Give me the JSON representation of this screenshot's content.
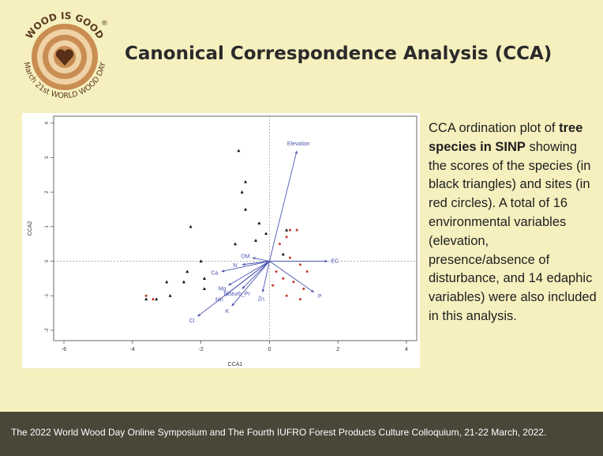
{
  "logo": {
    "arc_top": "WOOD IS GOOD",
    "arc_bottom": "March 21st WORLD WOOD DAY",
    "registered": "®",
    "icon": "heart-icon"
  },
  "slide": {
    "title": "Canonical Correspondence Analysis (CCA)",
    "caption_before": "CCA ordination plot of ",
    "caption_bold": "tree species in SINP",
    "caption_after": " showing the scores of the species (in black triangles) and sites (in red circles). A total of 16 environmental variables (elevation, presence/absence of disturbance, and 14 edaphic variables) were also included in this analysis."
  },
  "footer": {
    "text": "The 2022 World Wood Day Online Symposium and The Fourth IUFRO Forest Products Culture Colloquium, 21-22 March, 2022."
  },
  "colors": {
    "background": "#f6f0bf",
    "footer_bg": "#4a4638",
    "env_arrow": "#4a55b0",
    "species": "#111111",
    "sites": "#c0392b"
  },
  "chart_data": {
    "type": "scatter",
    "xlabel": "CCA1",
    "ylabel": "CCA2",
    "xlim": [
      -6.3,
      4.3
    ],
    "ylim": [
      -2.3,
      4.2
    ],
    "xticks": [
      -6,
      -4,
      -2,
      0,
      2,
      4
    ],
    "yticks": [
      -2,
      -1,
      0,
      1,
      2,
      3,
      4
    ],
    "reference_lines": {
      "x": 0,
      "y": 0
    },
    "grid": false,
    "environmental_vectors": [
      {
        "name": "Elevation",
        "x": 0.8,
        "y": 3.2
      },
      {
        "name": "EC",
        "x": 1.7,
        "y": 0.0
      },
      {
        "name": "P",
        "x": 1.3,
        "y": -0.9
      },
      {
        "name": "OM",
        "x": -0.5,
        "y": 0.1
      },
      {
        "name": "Ca",
        "x": -1.4,
        "y": -0.3
      },
      {
        "name": "Mg",
        "x": -1.2,
        "y": -0.7
      },
      {
        "name": "Disturb_Pr",
        "x": -0.8,
        "y": -0.8
      },
      {
        "name": "Mn",
        "x": -1.3,
        "y": -1.0
      },
      {
        "name": "K",
        "x": -1.1,
        "y": -1.3
      },
      {
        "name": "Cl",
        "x": -2.1,
        "y": -1.6
      },
      {
        "name": "Zn",
        "x": -0.2,
        "y": -0.9
      },
      {
        "name": "N",
        "x": -0.8,
        "y": -0.1
      }
    ],
    "species_points": [
      {
        "x": -0.9,
        "y": 3.2
      },
      {
        "x": -0.7,
        "y": 2.3
      },
      {
        "x": -0.8,
        "y": 2.0
      },
      {
        "x": -0.7,
        "y": 1.5
      },
      {
        "x": -0.3,
        "y": 1.1
      },
      {
        "x": -2.3,
        "y": 1.0
      },
      {
        "x": -1.0,
        "y": 0.5
      },
      {
        "x": -2.0,
        "y": 0.0
      },
      {
        "x": -2.4,
        "y": -0.3
      },
      {
        "x": -2.5,
        "y": -0.6
      },
      {
        "x": -1.9,
        "y": -0.5
      },
      {
        "x": -1.9,
        "y": -0.8
      },
      {
        "x": -3.0,
        "y": -0.6
      },
      {
        "x": -2.9,
        "y": -1.0
      },
      {
        "x": -3.3,
        "y": -1.1
      },
      {
        "x": -3.6,
        "y": -1.1
      },
      {
        "x": -0.1,
        "y": 0.8
      },
      {
        "x": -0.4,
        "y": 0.6
      },
      {
        "x": 0.5,
        "y": 0.9
      },
      {
        "x": 0.4,
        "y": 0.2
      }
    ],
    "site_points": [
      {
        "x": 0.6,
        "y": 0.9
      },
      {
        "x": 0.8,
        "y": 0.9
      },
      {
        "x": 0.5,
        "y": 0.7
      },
      {
        "x": 0.3,
        "y": 0.5
      },
      {
        "x": 0.6,
        "y": 0.1
      },
      {
        "x": 0.9,
        "y": -0.1
      },
      {
        "x": 0.4,
        "y": -0.5
      },
      {
        "x": 0.7,
        "y": -0.6
      },
      {
        "x": 1.0,
        "y": -0.8
      },
      {
        "x": 0.1,
        "y": -0.7
      },
      {
        "x": 0.5,
        "y": -1.0
      },
      {
        "x": 0.9,
        "y": -1.1
      },
      {
        "x": 0.2,
        "y": -0.3
      },
      {
        "x": -3.6,
        "y": -1.0
      },
      {
        "x": -3.4,
        "y": -1.1
      },
      {
        "x": 1.1,
        "y": -0.3
      }
    ]
  }
}
